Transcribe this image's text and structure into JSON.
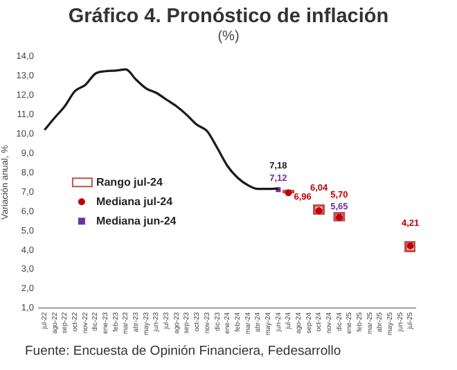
{
  "chart_data": {
    "type": "line",
    "title": "Gráfico 4. Pronóstico de inflación",
    "subtitle": "(%)",
    "ylabel": "Variación anual, %",
    "categories": [
      "jul-22",
      "ago-22",
      "sep-22",
      "oct-22",
      "nov-22",
      "dic-22",
      "ene-23",
      "feb-23",
      "mar-23",
      "abr-23",
      "may-23",
      "jun-23",
      "jul-23",
      "ago-23",
      "sep-23",
      "oct-23",
      "nov-23",
      "dic-23",
      "ene-24",
      "feb-24",
      "mar-24",
      "abr-24",
      "may-24",
      "jun-24",
      "jul-24",
      "ago-24",
      "sep-24",
      "oct-24",
      "nov-24",
      "dic-24",
      "ene-25",
      "feb-25",
      "mar-25",
      "abr-25",
      "may-25",
      "jun-25",
      "jul-25"
    ],
    "series": [
      {
        "color": "#1a1a1a",
        "marker": "none",
        "values": [
          10.21,
          10.84,
          11.44,
          12.22,
          12.53,
          13.12,
          13.25,
          13.28,
          13.34,
          12.82,
          12.36,
          12.13,
          11.78,
          11.43,
          10.99,
          10.48,
          10.15,
          9.28,
          8.35,
          7.74,
          7.36,
          7.16,
          7.16,
          7.18,
          null,
          null,
          null,
          null,
          null,
          null,
          null,
          null,
          null,
          null,
          null,
          null,
          null
        ],
        "value_labels": [
          null,
          null,
          null,
          null,
          null,
          null,
          null,
          null,
          null,
          null,
          null,
          null,
          null,
          null,
          null,
          null,
          null,
          null,
          null,
          null,
          null,
          null,
          null,
          "7,18",
          null,
          null,
          null,
          null,
          null,
          null,
          null,
          null,
          null,
          null,
          null,
          null,
          null
        ]
      },
      {
        "type": "bar",
        "name": "Rango jul-24",
        "color": "#c0504d",
        "base": [
          null,
          null,
          null,
          null,
          null,
          null,
          null,
          null,
          null,
          null,
          null,
          null,
          null,
          null,
          null,
          null,
          null,
          null,
          null,
          null,
          null,
          null,
          null,
          null,
          6.95,
          null,
          null,
          5.85,
          null,
          5.5,
          null,
          null,
          null,
          null,
          null,
          null,
          3.9
        ],
        "values": [
          null,
          null,
          null,
          null,
          null,
          null,
          null,
          null,
          null,
          null,
          null,
          null,
          null,
          null,
          null,
          null,
          null,
          null,
          null,
          null,
          null,
          null,
          null,
          null,
          0.15,
          null,
          null,
          0.5,
          null,
          0.45,
          null,
          null,
          null,
          null,
          null,
          null,
          0.55
        ]
      },
      {
        "type": "scatter",
        "name": "Mediana jul-24",
        "color": "#c00000",
        "marker": "circle",
        "values": [
          null,
          null,
          null,
          null,
          null,
          null,
          null,
          null,
          null,
          null,
          null,
          null,
          null,
          null,
          null,
          null,
          null,
          null,
          null,
          null,
          null,
          null,
          null,
          null,
          6.96,
          null,
          null,
          6.04,
          null,
          5.7,
          null,
          null,
          null,
          null,
          null,
          null,
          4.21
        ],
        "value_labels": [
          null,
          null,
          null,
          null,
          null,
          null,
          null,
          null,
          null,
          null,
          null,
          null,
          null,
          null,
          null,
          null,
          null,
          null,
          null,
          null,
          null,
          null,
          null,
          null,
          "6,96",
          null,
          null,
          "6,04",
          null,
          "5,70",
          null,
          null,
          null,
          null,
          null,
          null,
          "4,21"
        ]
      },
      {
        "type": "scatter",
        "name": "Mediana jun-24",
        "color": "#7030a0",
        "marker": "square",
        "values": [
          null,
          null,
          null,
          null,
          null,
          null,
          null,
          null,
          null,
          null,
          null,
          null,
          null,
          null,
          null,
          null,
          null,
          null,
          null,
          null,
          null,
          null,
          null,
          7.12,
          null,
          null,
          null,
          null,
          null,
          5.65,
          null,
          null,
          null,
          null,
          null,
          null,
          null
        ],
        "value_labels": [
          null,
          null,
          null,
          null,
          null,
          null,
          null,
          null,
          null,
          null,
          null,
          null,
          null,
          null,
          null,
          null,
          null,
          null,
          null,
          null,
          null,
          null,
          null,
          "7,12",
          null,
          null,
          null,
          null,
          null,
          "5,65",
          null,
          null,
          null,
          null,
          null,
          null,
          null
        ]
      }
    ],
    "ylim": [
      1,
      14
    ],
    "yticks": [
      {
        "value": 1,
        "label": "1,0"
      },
      {
        "value": 2,
        "label": "2,0"
      },
      {
        "value": 3,
        "label": "3,0"
      },
      {
        "value": 4,
        "label": "4,0"
      },
      {
        "value": 5,
        "label": "5,0"
      },
      {
        "value": 6,
        "label": "6,0"
      },
      {
        "value": 7,
        "label": "7,0"
      },
      {
        "value": 8,
        "label": "8,0"
      },
      {
        "value": 9,
        "label": "9,0"
      },
      {
        "value": 10,
        "label": "10,0"
      },
      {
        "value": 11,
        "label": "11,0"
      },
      {
        "value": 12,
        "label": "12,0"
      },
      {
        "value": 13,
        "label": "13,0"
      },
      {
        "value": 14,
        "label": "14,0"
      }
    ],
    "grid": false,
    "legend": "left",
    "annotations": [
      "Fuente: Encuesta de Opinión Financiera, Fedesarrollo"
    ]
  }
}
